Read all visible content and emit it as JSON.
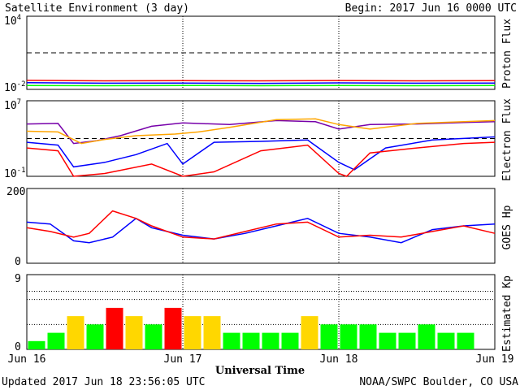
{
  "header": {
    "title": "Satellite Environment (3 day)",
    "begin": "Begin:  2017 Jun 16 0000 UTC"
  },
  "footer": {
    "updated": "Updated 2017 Jun 18 23:56:05 UTC",
    "credit": "NOAA/SWPC Boulder, CO USA"
  },
  "x_axis": {
    "label": "Universal Time",
    "ticks": [
      "Jun 16",
      "Jun 17",
      "Jun 18",
      "Jun 19"
    ]
  },
  "colors": {
    "red": "#ff0000",
    "blue": "#0000ff",
    "green": "#00ff00",
    "purple": "#7700aa",
    "orange": "#ffa500",
    "yellow": "#ffd700"
  },
  "chart_data": [
    {
      "type": "line",
      "ylabel": "Proton Flux",
      "yscale": "log",
      "ylim": [
        0.01,
        10000
      ],
      "ytick_base": "10",
      "ytick_top_exp": "4",
      "ytick_bottom_exp": "-2",
      "threshold": 10,
      "x_range_days": [
        0,
        3
      ],
      "series": [
        {
          "color": "red",
          "x": [
            0,
            0.5,
            1,
            1.5,
            2,
            2.5,
            3
          ],
          "y": [
            0.055,
            0.05,
            0.052,
            0.05,
            0.053,
            0.05,
            0.052
          ]
        },
        {
          "color": "blue",
          "x": [
            0,
            0.5,
            1,
            1.5,
            2,
            2.5,
            3
          ],
          "y": [
            0.035,
            0.032,
            0.033,
            0.031,
            0.034,
            0.032,
            0.033
          ]
        },
        {
          "color": "green",
          "x": [
            0,
            0.5,
            1,
            1.5,
            2,
            2.5,
            3
          ],
          "y": [
            0.021,
            0.02,
            0.021,
            0.02,
            0.021,
            0.02,
            0.021
          ]
        }
      ]
    },
    {
      "type": "line",
      "ylabel": "Electron Flux",
      "yscale": "log",
      "ylim": [
        0.1,
        10000000
      ],
      "ytick_base": "10",
      "ytick_top_exp": "7",
      "ytick_bottom_exp": "-1",
      "threshold": 1000,
      "series": [
        {
          "color": "purple",
          "x": [
            0,
            0.2,
            0.3,
            0.45,
            0.6,
            0.8,
            1.0,
            1.3,
            1.6,
            1.85,
            2.0,
            2.2,
            2.5,
            2.8,
            3.0
          ],
          "y": [
            35000,
            40000,
            300,
            600,
            2000,
            20000,
            45000,
            30000,
            80000,
            60000,
            10000,
            30000,
            35000,
            50000,
            60000
          ]
        },
        {
          "color": "orange",
          "x": [
            0,
            0.2,
            0.35,
            0.5,
            0.7,
            0.95,
            1.1,
            1.3,
            1.6,
            1.85,
            2.0,
            2.2,
            2.5,
            2.8,
            3.0
          ],
          "y": [
            6000,
            5000,
            300,
            800,
            2000,
            3000,
            5000,
            15000,
            100000,
            120000,
            30000,
            10000,
            40000,
            60000,
            80000
          ]
        },
        {
          "color": "blue",
          "x": [
            0,
            0.2,
            0.3,
            0.5,
            0.7,
            0.9,
            1.0,
            1.2,
            1.5,
            1.8,
            2.0,
            2.1,
            2.3,
            2.6,
            3.0
          ],
          "y": [
            400,
            200,
            1,
            3,
            20,
            300,
            2,
            400,
            500,
            700,
            3,
            0.5,
            100,
            700,
            1500
          ]
        },
        {
          "color": "red",
          "x": [
            0,
            0.2,
            0.3,
            0.5,
            0.8,
            1.0,
            1.2,
            1.5,
            1.8,
            2.0,
            2.05,
            2.2,
            2.5,
            2.8,
            3.0
          ],
          "y": [
            100,
            50,
            0.1,
            0.2,
            2,
            0.1,
            0.3,
            50,
            200,
            0.2,
            0.1,
            30,
            100,
            300,
            400
          ]
        }
      ]
    },
    {
      "type": "line",
      "ylabel": "GOES Hp",
      "ylim": [
        0,
        200
      ],
      "yticks": [
        "0",
        "200"
      ],
      "series": [
        {
          "color": "blue",
          "x": [
            0,
            0.15,
            0.3,
            0.4,
            0.55,
            0.7,
            0.8,
            1.0,
            1.2,
            1.4,
            1.6,
            1.8,
            2.0,
            2.2,
            2.4,
            2.6,
            2.8,
            3.0
          ],
          "y": [
            110,
            105,
            60,
            55,
            70,
            120,
            95,
            75,
            65,
            80,
            100,
            120,
            80,
            70,
            55,
            90,
            100,
            105
          ]
        },
        {
          "color": "red",
          "x": [
            0,
            0.15,
            0.3,
            0.4,
            0.55,
            0.7,
            0.8,
            1.0,
            1.2,
            1.4,
            1.6,
            1.8,
            2.0,
            2.2,
            2.4,
            2.6,
            2.8,
            3.0
          ],
          "y": [
            95,
            85,
            70,
            80,
            140,
            120,
            100,
            70,
            65,
            85,
            105,
            110,
            70,
            75,
            70,
            85,
            100,
            80
          ]
        }
      ]
    },
    {
      "type": "bar",
      "ylabel": "Estimated Kp",
      "ylim": [
        0,
        9
      ],
      "yticks": [
        "0",
        "9"
      ],
      "bar_hours": 3,
      "values": [
        1,
        2,
        4,
        3,
        5,
        4,
        3,
        5,
        4,
        4,
        2,
        2,
        2,
        2,
        4,
        3,
        3,
        3,
        2,
        2,
        3,
        2,
        2,
        0
      ],
      "colors": [
        "green",
        "green",
        "yellow",
        "green",
        "red",
        "yellow",
        "green",
        "red",
        "yellow",
        "yellow",
        "green",
        "green",
        "green",
        "green",
        "yellow",
        "green",
        "green",
        "green",
        "green",
        "green",
        "green",
        "green",
        "green",
        "green"
      ]
    }
  ]
}
